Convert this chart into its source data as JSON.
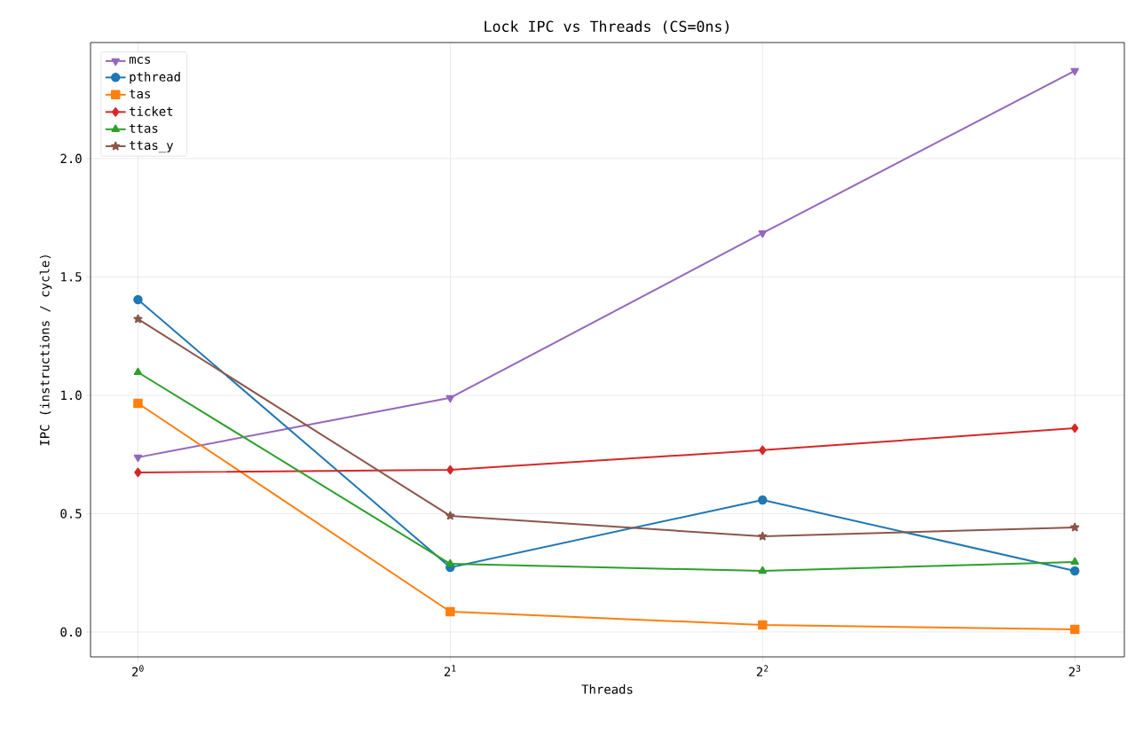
{
  "chart_data": {
    "type": "line",
    "title": "Lock IPC vs Threads (CS=0ns)",
    "xlabel": "Threads",
    "ylabel": "IPC (instructions / cycle)",
    "x": [
      1,
      2,
      4,
      8
    ],
    "log": "x",
    "xlim": [
      0.9,
      8.93
    ],
    "ylim": [
      -0.105,
      2.49
    ],
    "xticks": [
      {
        "value": 1,
        "label": "2$^{0}$"
      },
      {
        "value": 2,
        "label": "2$^{1}$"
      },
      {
        "value": 4,
        "label": "2$^{2}$"
      },
      {
        "value": 8,
        "label": "2$^{3}$"
      }
    ],
    "yticks": [
      {
        "value": 0,
        "label": "0.0"
      },
      {
        "value": 0.5,
        "label": "0.5"
      },
      {
        "value": 1,
        "label": "1.0"
      },
      {
        "value": 1.5,
        "label": "1.5"
      },
      {
        "value": 2,
        "label": "2.0"
      }
    ],
    "grid": true,
    "legend": "top left",
    "line_style": "solid",
    "series": [
      {
        "name": "mcs",
        "color": "#9467bd",
        "marker": "triangle_down",
        "values": [
          0.738,
          0.989,
          1.685,
          2.371
        ]
      },
      {
        "name": "pthread",
        "color": "#1f77b4",
        "marker": "circle",
        "values": [
          1.404,
          0.273,
          0.558,
          0.258
        ]
      },
      {
        "name": "tas",
        "color": "#ff7f0e",
        "marker": "square",
        "values": [
          0.966,
          0.086,
          0.03,
          0.011
        ]
      },
      {
        "name": "ticket",
        "color": "#d62728",
        "marker": "diamond",
        "values": [
          0.674,
          0.685,
          0.768,
          0.861
        ]
      },
      {
        "name": "ttas",
        "color": "#2ca02c",
        "marker": "triangle",
        "values": [
          1.097,
          0.288,
          0.258,
          0.296
        ]
      },
      {
        "name": "ttas_y",
        "color": "#8c564b",
        "marker": "star",
        "values": [
          1.322,
          0.491,
          0.404,
          0.442
        ]
      }
    ]
  }
}
